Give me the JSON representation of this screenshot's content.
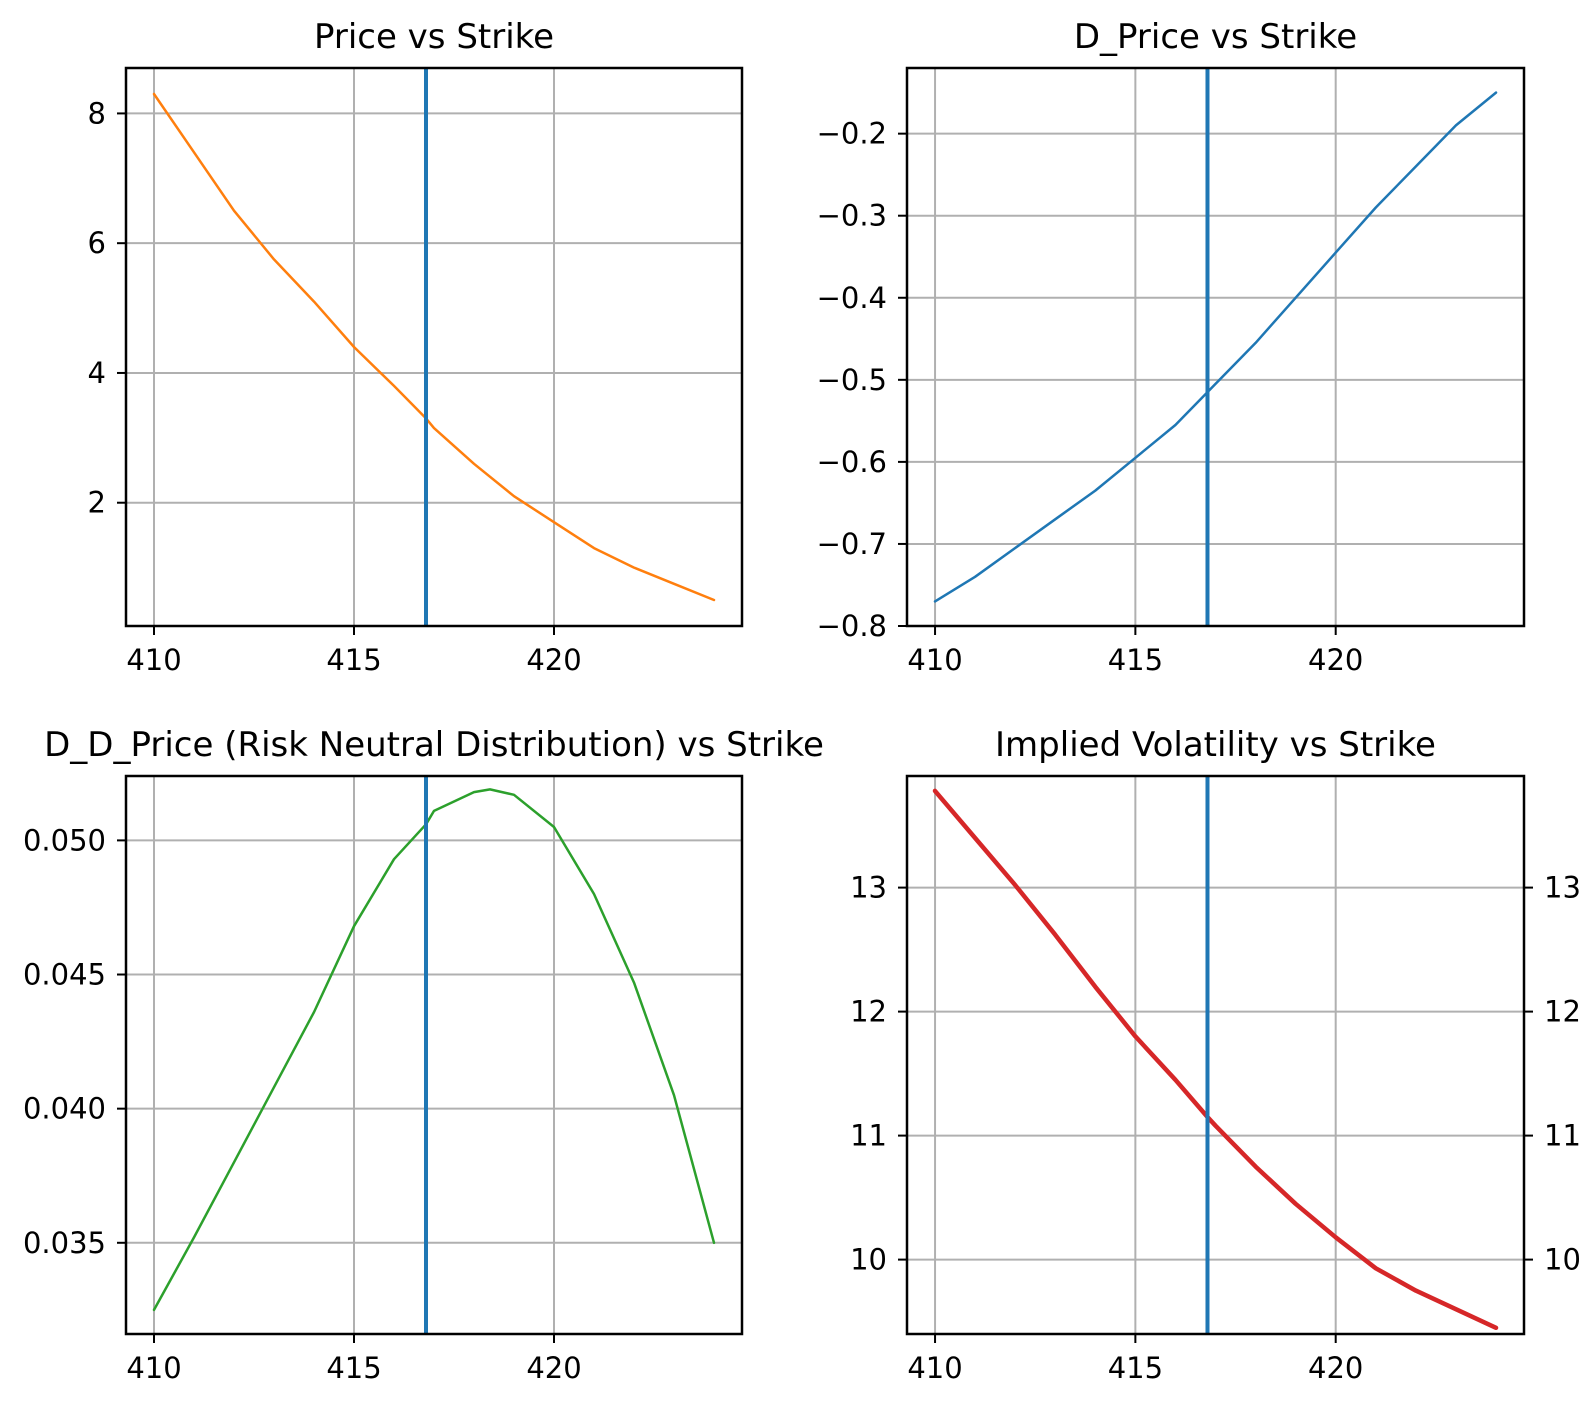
{
  "chart_data": [
    {
      "type": "line",
      "title": "Price vs Strike",
      "xlabel": "",
      "ylabel": "",
      "xlim": [
        409.3,
        424.7
      ],
      "ylim": [
        0.1,
        8.7
      ],
      "xticks": [
        410,
        415,
        420
      ],
      "xtick_labels": [
        "410",
        "415",
        "420"
      ],
      "yticks": [
        2,
        4,
        6,
        8
      ],
      "ytick_labels": [
        "2",
        "4",
        "6",
        "8"
      ],
      "grid": true,
      "vline_x": 416.8,
      "vline_color": "#1f77b4",
      "series_color": "#ff7f0e",
      "line_width": 2.5,
      "right_axis": false,
      "series": [
        {
          "x": [
            410,
            411,
            412,
            413,
            414,
            415,
            416,
            416.8,
            417,
            418,
            419,
            420,
            421,
            422,
            423,
            424
          ],
          "y": [
            8.3,
            7.4,
            6.5,
            5.75,
            5.1,
            4.4,
            3.8,
            3.3,
            3.15,
            2.6,
            2.1,
            1.7,
            1.3,
            1.0,
            0.75,
            0.5
          ]
        }
      ]
    },
    {
      "type": "line",
      "title": "D_Price vs Strike",
      "xlabel": "",
      "ylabel": "",
      "xlim": [
        409.3,
        424.7
      ],
      "ylim": [
        -0.8,
        -0.12
      ],
      "xticks": [
        410,
        415,
        420
      ],
      "xtick_labels": [
        "410",
        "415",
        "420"
      ],
      "yticks": [
        -0.8,
        -0.7,
        -0.6,
        -0.5,
        -0.4,
        -0.3,
        -0.2
      ],
      "ytick_labels": [
        "−0.8",
        "−0.7",
        "−0.6",
        "−0.5",
        "−0.4",
        "−0.3",
        "−0.2"
      ],
      "grid": true,
      "vline_x": 416.8,
      "vline_color": "#1f77b4",
      "series_color": "#1f77b4",
      "line_width": 2.5,
      "right_axis": false,
      "series": [
        {
          "x": [
            410,
            411,
            412,
            413,
            414,
            415,
            416,
            416.8,
            417,
            418,
            419,
            420,
            421,
            422,
            423,
            424
          ],
          "y": [
            -0.77,
            -0.74,
            -0.705,
            -0.67,
            -0.635,
            -0.595,
            -0.555,
            -0.515,
            -0.505,
            -0.455,
            -0.4,
            -0.345,
            -0.29,
            -0.24,
            -0.19,
            -0.15
          ]
        }
      ]
    },
    {
      "type": "line",
      "title": "D_D_Price (Risk Neutral Distribution) vs Strike",
      "xlabel": "",
      "ylabel": "",
      "xlim": [
        409.3,
        424.7
      ],
      "ylim": [
        0.0316,
        0.0524
      ],
      "xticks": [
        410,
        415,
        420
      ],
      "xtick_labels": [
        "410",
        "415",
        "420"
      ],
      "yticks": [
        0.035,
        0.04,
        0.045,
        0.05
      ],
      "ytick_labels": [
        "0.035",
        "0.040",
        "0.045",
        "0.050"
      ],
      "grid": true,
      "vline_x": 416.8,
      "vline_color": "#1f77b4",
      "series_color": "#2ca02c",
      "line_width": 2.5,
      "right_axis": false,
      "series": [
        {
          "x": [
            410,
            411,
            412,
            413,
            414,
            415,
            416,
            416.8,
            417,
            418,
            418.4,
            419,
            420,
            421,
            422,
            423,
            424
          ],
          "y": [
            0.0325,
            0.0352,
            0.038,
            0.0408,
            0.0436,
            0.0468,
            0.0493,
            0.0506,
            0.0511,
            0.0518,
            0.0519,
            0.0517,
            0.0505,
            0.048,
            0.0447,
            0.0405,
            0.035
          ]
        }
      ]
    },
    {
      "type": "line",
      "title": "Implied Volatility vs Strike",
      "xlabel": "",
      "ylabel": "",
      "xlim": [
        409.3,
        424.7
      ],
      "ylim": [
        9.4,
        13.9
      ],
      "xticks": [
        410,
        415,
        420
      ],
      "xtick_labels": [
        "410",
        "415",
        "420"
      ],
      "yticks": [
        10,
        11,
        12,
        13
      ],
      "ytick_labels": [
        "10",
        "11",
        "12",
        "13"
      ],
      "right_ytick_labels": [
        "10",
        "11",
        "12",
        "13"
      ],
      "grid": true,
      "vline_x": 416.8,
      "vline_color": "#1f77b4",
      "series_color": "#d62728",
      "line_width": 4.5,
      "right_axis": true,
      "series": [
        {
          "x": [
            410,
            411,
            412,
            413,
            414,
            415,
            416,
            416.8,
            417,
            418,
            419,
            420,
            421,
            422,
            423,
            424
          ],
          "y": [
            13.78,
            13.4,
            13.02,
            12.62,
            12.2,
            11.8,
            11.45,
            11.15,
            11.08,
            10.75,
            10.45,
            10.18,
            9.93,
            9.75,
            9.6,
            9.45
          ]
        }
      ]
    }
  ]
}
